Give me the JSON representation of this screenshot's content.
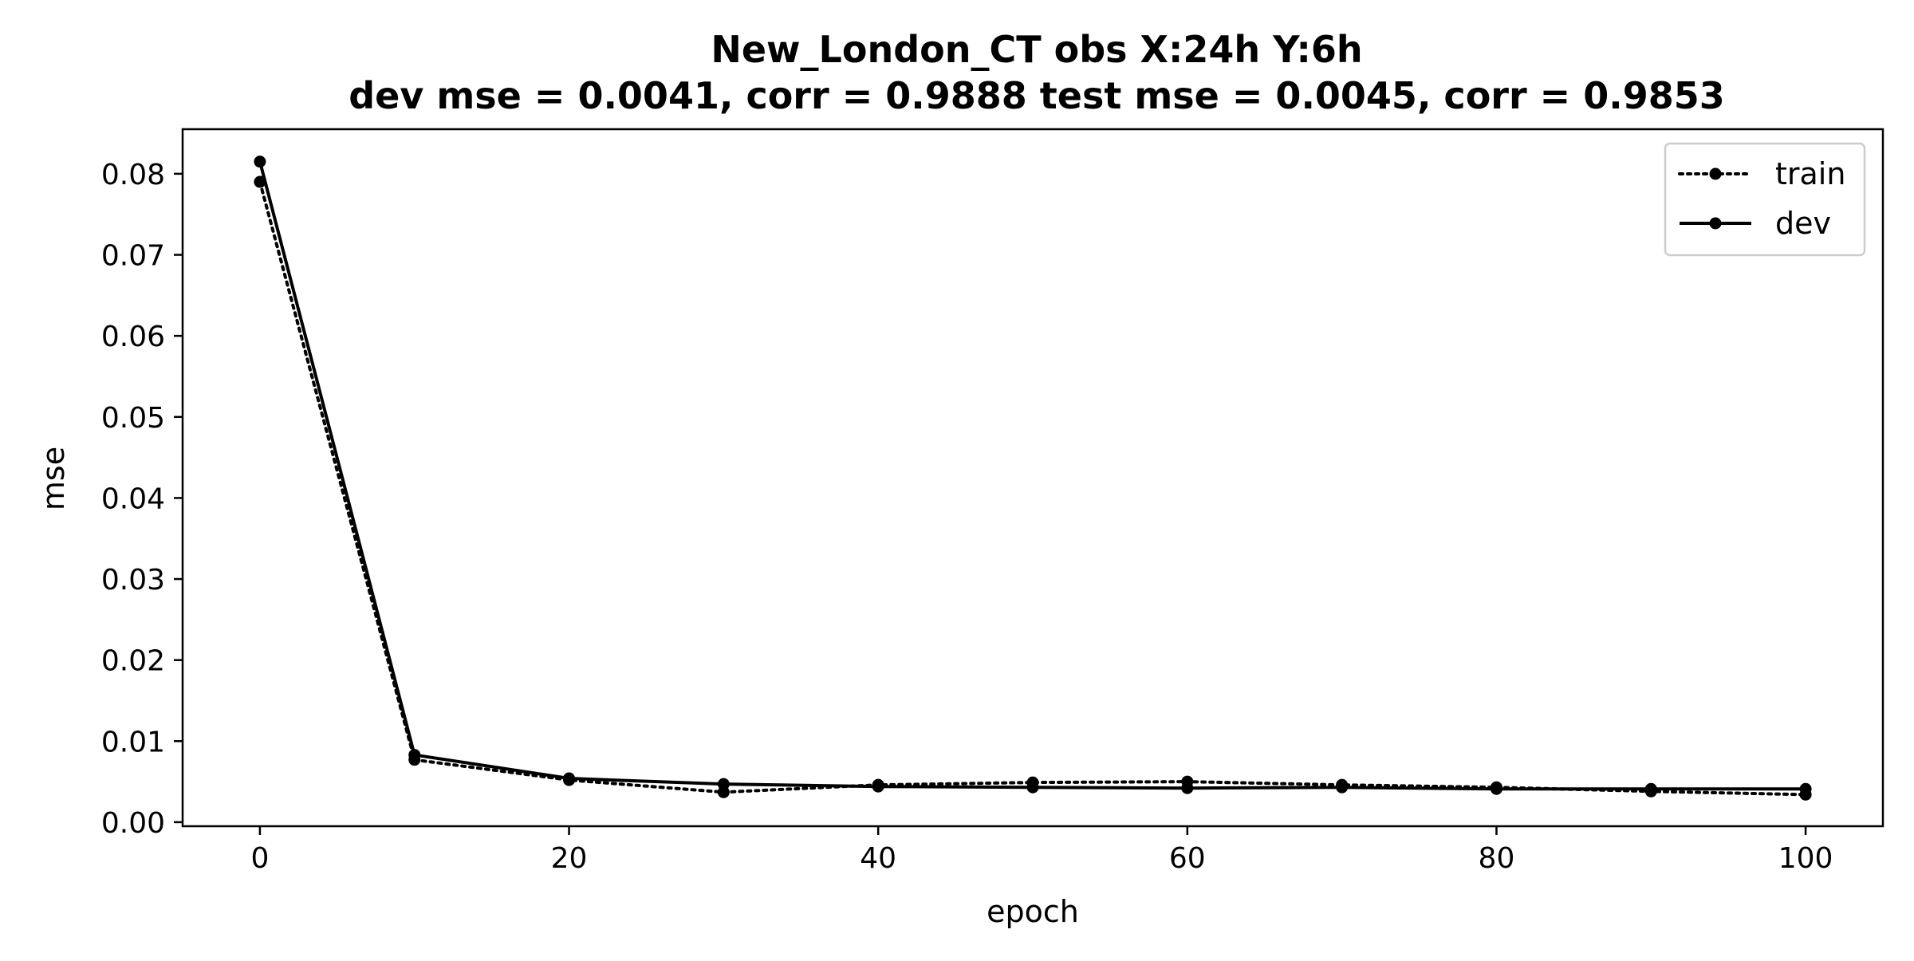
{
  "chart_data": {
    "type": "line",
    "title": "New_London_CT   obs   X:24h   Y:6h",
    "subtitle": "dev mse = 0.0041, corr = 0.9888   test mse = 0.0045, corr = 0.9853",
    "xlabel": "epoch",
    "ylabel": "mse",
    "xlim": [
      -5,
      105
    ],
    "ylim": [
      -0.0005,
      0.0855
    ],
    "xticks": [
      0,
      20,
      40,
      60,
      80,
      100
    ],
    "yticks": [
      0.0,
      0.01,
      0.02,
      0.03,
      0.04,
      0.05,
      0.06,
      0.07,
      0.08
    ],
    "xtick_labels": [
      "0",
      "20",
      "40",
      "60",
      "80",
      "100"
    ],
    "ytick_labels": [
      "0.00",
      "0.01",
      "0.02",
      "0.03",
      "0.04",
      "0.05",
      "0.06",
      "0.07",
      "0.08"
    ],
    "grid": false,
    "legend_position": "top-right",
    "x": [
      0,
      10,
      20,
      30,
      40,
      50,
      60,
      70,
      80,
      90,
      100
    ],
    "series": [
      {
        "name": "train",
        "style": "dotted",
        "color": "#000000",
        "values": [
          0.079,
          0.0077,
          0.0052,
          0.0037,
          0.0046,
          0.0049,
          0.005,
          0.0046,
          0.0043,
          0.0038,
          0.0034
        ]
      },
      {
        "name": "dev",
        "style": "solid",
        "color": "#000000",
        "values": [
          0.0815,
          0.0083,
          0.0054,
          0.0047,
          0.0044,
          0.0043,
          0.0042,
          0.0043,
          0.0041,
          0.0041,
          0.0041
        ]
      }
    ]
  }
}
